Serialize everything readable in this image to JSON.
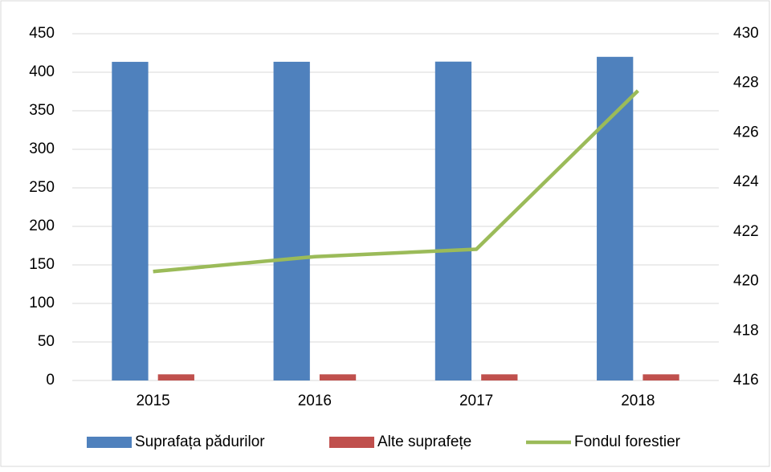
{
  "chart_data": {
    "type": "bar_line",
    "categories": [
      "2015",
      "2016",
      "2017",
      "2018"
    ],
    "series": [
      {
        "name": "Suprafața pădurilor",
        "type": "bar",
        "color": "#4f81bd",
        "values": [
          413.5,
          413.6,
          413.8,
          420
        ]
      },
      {
        "name": "Alte suprafețe",
        "type": "bar",
        "color": "#c0504d",
        "values": [
          8,
          8,
          8,
          8
        ]
      },
      {
        "name": "Fondul forestier",
        "type": "line",
        "axis": "y2",
        "color": "#9bbb59",
        "values": [
          420.4,
          421.0,
          421.3,
          427.7
        ]
      }
    ],
    "ylim": [
      0,
      450
    ],
    "yticks": [
      0,
      50,
      100,
      150,
      200,
      250,
      300,
      350,
      400,
      450
    ],
    "y2lim": [
      416,
      430
    ],
    "y2ticks": [
      416,
      418,
      420,
      422,
      424,
      426,
      428,
      430
    ],
    "grid": true,
    "legend": "bottom"
  }
}
